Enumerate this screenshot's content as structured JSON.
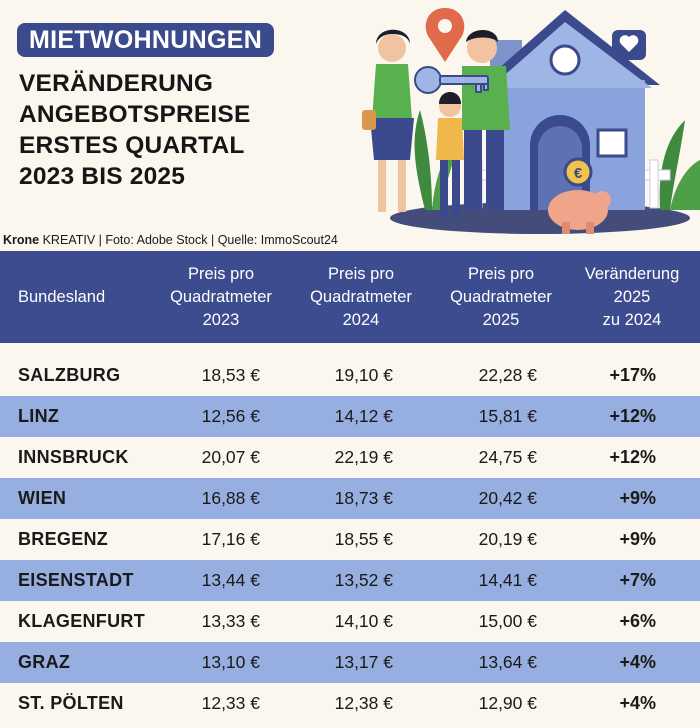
{
  "header": {
    "tag": "MIETWOHNUNGEN",
    "title_lines": [
      "VERÄNDERUNG",
      "ANGEBOTSPREISE",
      "ERSTES QUARTAL",
      "2023 BIS 2025"
    ]
  },
  "credit": {
    "brand": "Krone",
    "text": " KREATIV | Foto: Adobe Stock | Quelle: ImmoScout24"
  },
  "table": {
    "headers": [
      [
        "Bundesland"
      ],
      [
        "Preis pro",
        "Quadratmeter",
        "2023"
      ],
      [
        "Preis pro",
        "Quadratmeter",
        "2024"
      ],
      [
        "Preis pro",
        "Quadratmeter",
        "2025"
      ],
      [
        "Veränderung",
        "2025",
        "zu 2024"
      ]
    ]
  },
  "chart_data": {
    "type": "table",
    "columns": [
      "Bundesland",
      "Preis pro Quadratmeter 2023",
      "Preis pro Quadratmeter 2024",
      "Preis pro Quadratmeter 2025",
      "Veränderung 2025 zu 2024"
    ],
    "rows": [
      {
        "name": "SALZBURG",
        "p2023": "18,53 €",
        "p2024": "19,10 €",
        "p2025": "22,28 €",
        "change": "+17%"
      },
      {
        "name": "LINZ",
        "p2023": "12,56 €",
        "p2024": "14,12 €",
        "p2025": "15,81 €",
        "change": "+12%"
      },
      {
        "name": "INNSBRUCK",
        "p2023": "20,07 €",
        "p2024": "22,19 €",
        "p2025": "24,75 €",
        "change": "+12%"
      },
      {
        "name": "WIEN",
        "p2023": "16,88 €",
        "p2024": "18,73 €",
        "p2025": "20,42 €",
        "change": "+9%"
      },
      {
        "name": "BREGENZ",
        "p2023": "17,16 €",
        "p2024": "18,55 €",
        "p2025": "20,19 €",
        "change": "+9%"
      },
      {
        "name": "EISENSTADT",
        "p2023": "13,44 €",
        "p2024": "13,52 €",
        "p2025": "14,41 €",
        "change": "+7%"
      },
      {
        "name": "KLAGENFURT",
        "p2023": "13,33 €",
        "p2024": "14,10 €",
        "p2025": "15,00 €",
        "change": "+6%"
      },
      {
        "name": "GRAZ",
        "p2023": "13,10 €",
        "p2024": "13,17 €",
        "p2025": "13,64 €",
        "change": "+4%"
      },
      {
        "name": "ST. PÖLTEN",
        "p2023": "12,33 €",
        "p2024": "12,38 €",
        "p2025": "12,90 €",
        "change": "+4%"
      }
    ]
  },
  "colors": {
    "header_band": "#3d4c8e",
    "alt_row": "#97aee0",
    "background": "#fbf6ee"
  },
  "illustration": {
    "icons": [
      "house-icon",
      "family-icon",
      "key-icon",
      "location-pin-icon",
      "heart-icon",
      "piggy-bank-icon",
      "euro-coin-icon",
      "plant-icon"
    ]
  }
}
